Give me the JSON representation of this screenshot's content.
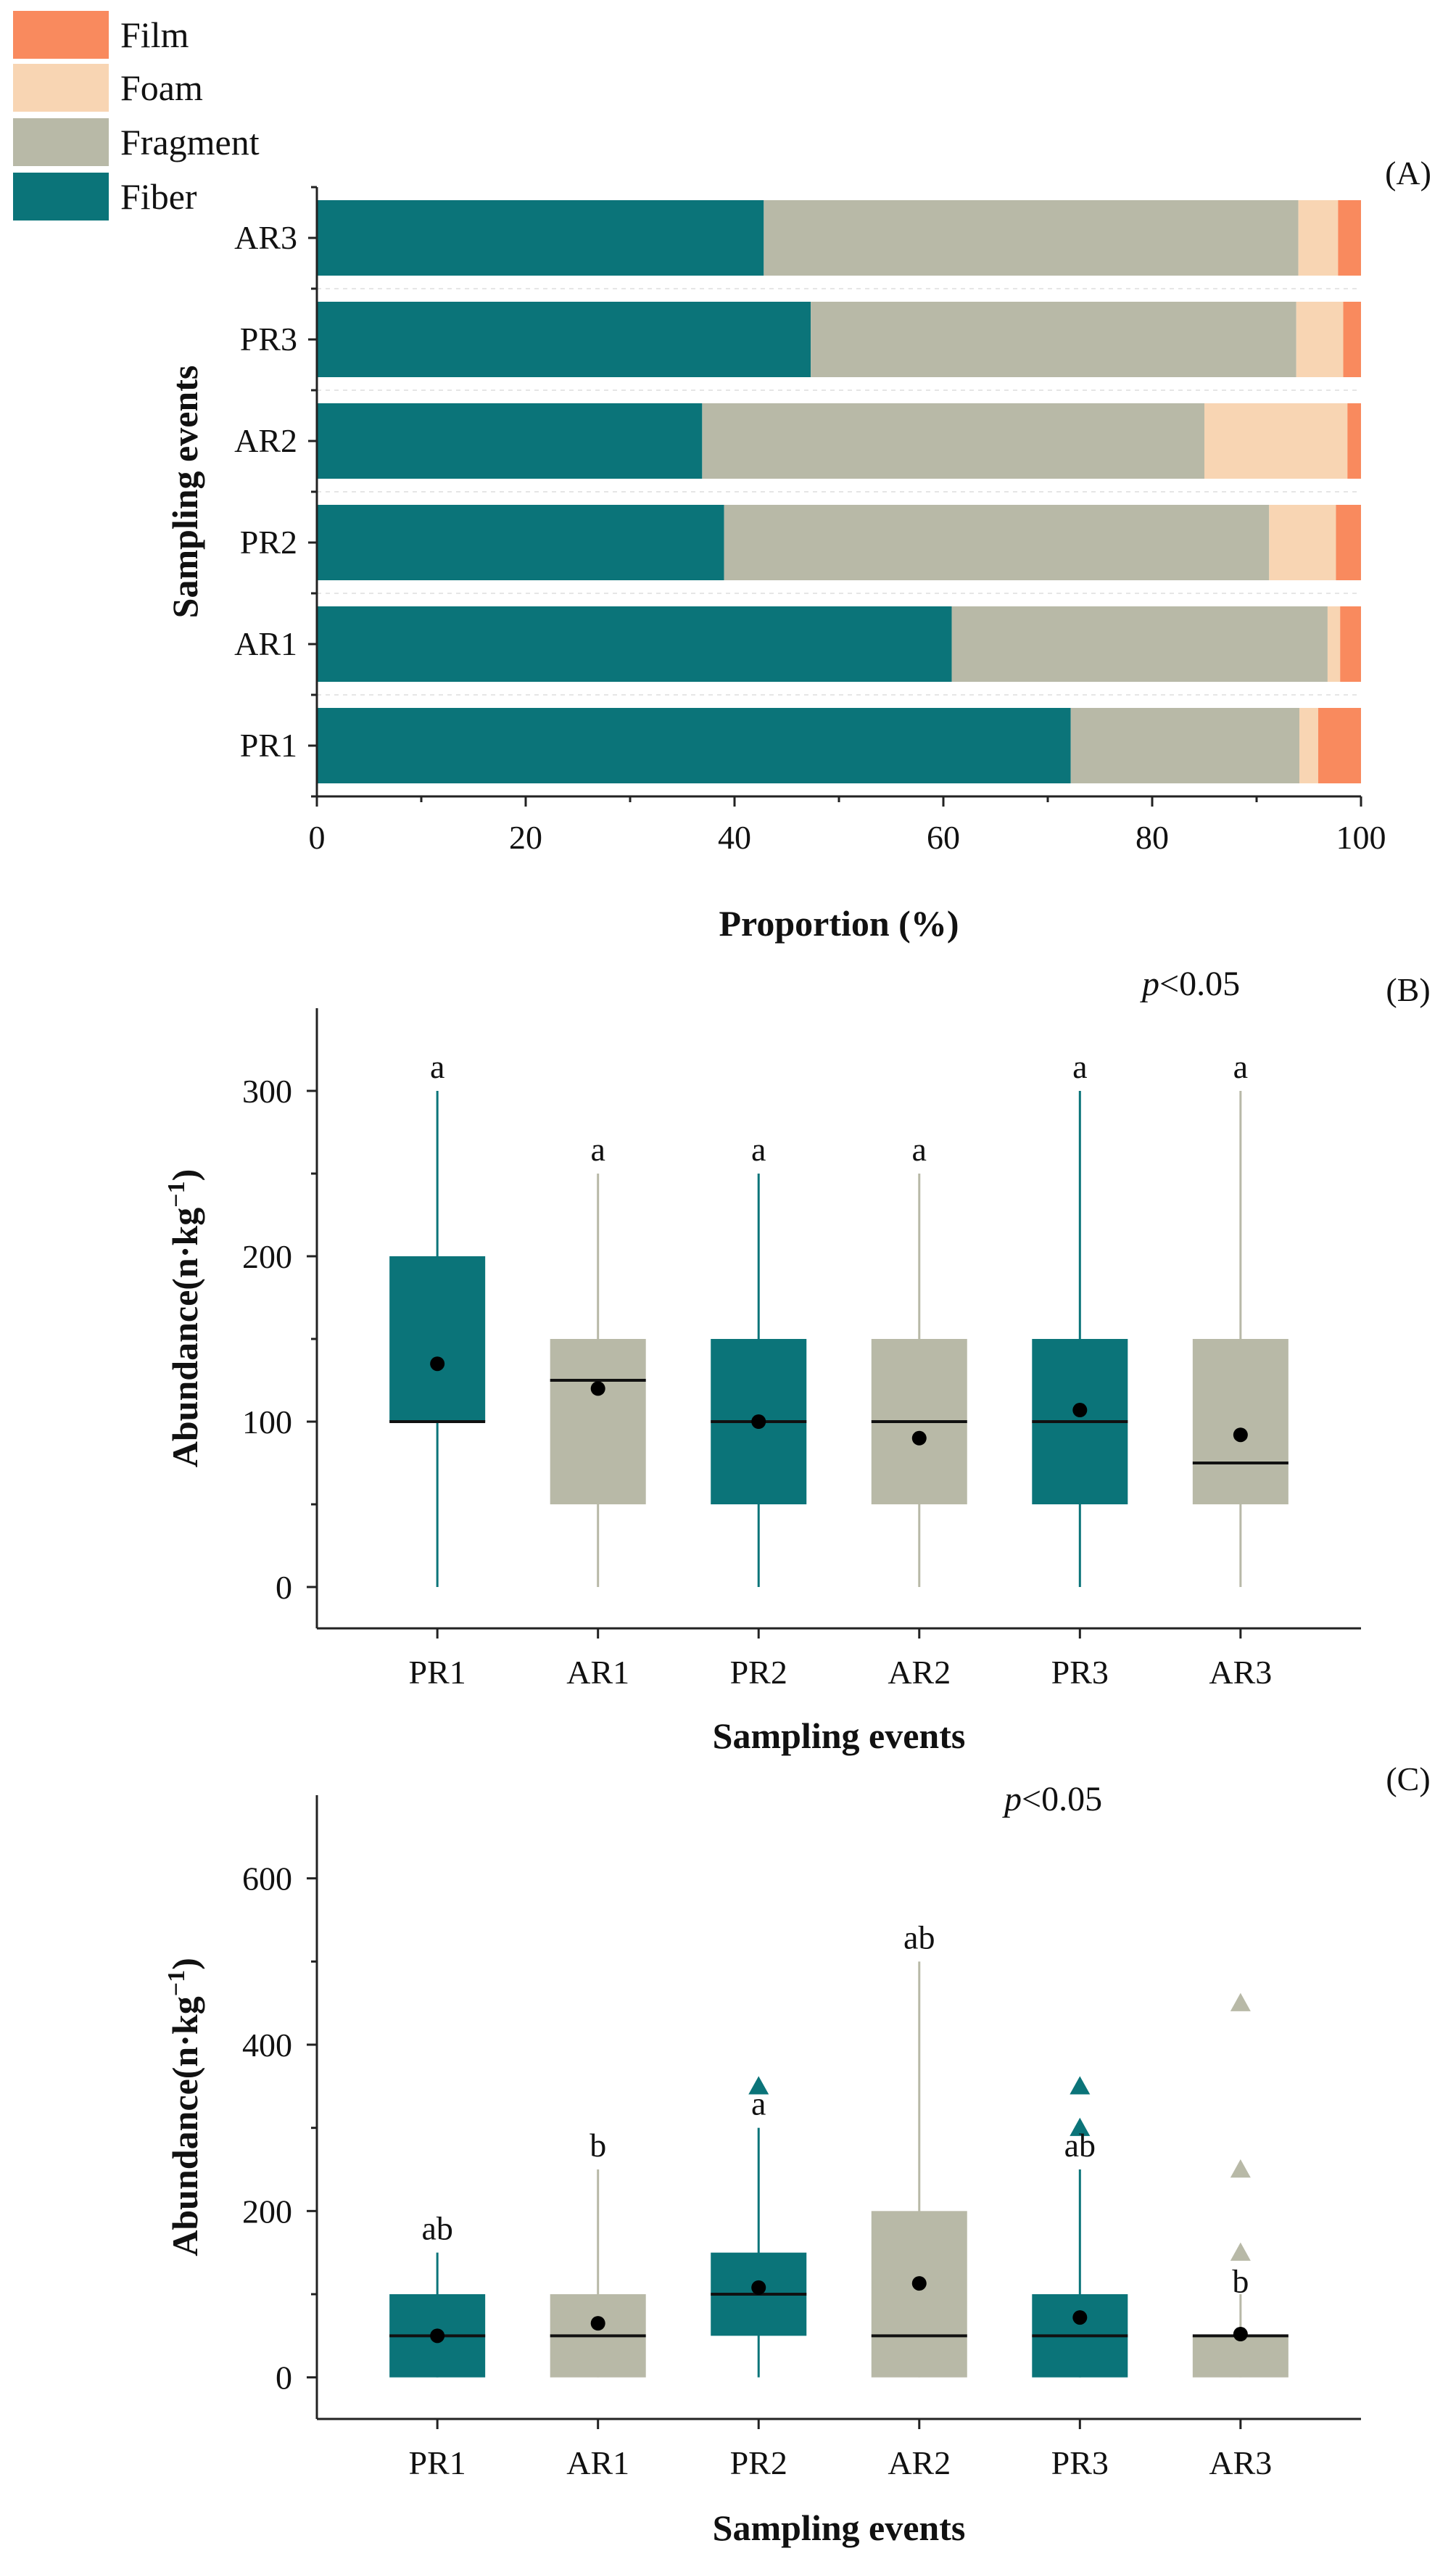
{
  "colors": {
    "film": "#f98a5e",
    "foam": "#f8d5b3",
    "fragment": "#b8b9a7",
    "fiber": "#0b7479",
    "axis": "#222222",
    "mean_dot": "#000000",
    "median": "#111111"
  },
  "chart_data": [
    {
      "panel_label": "(A)",
      "type": "bar",
      "orientation": "horizontal",
      "stacked": true,
      "title": "",
      "xlabel": "Proportion (%)",
      "ylabel": "Sampling events",
      "xlim": [
        0,
        100
      ],
      "xticks": [
        "0",
        "20",
        "40",
        "60",
        "80",
        "100"
      ],
      "categories": [
        "PR1",
        "AR1",
        "PR2",
        "AR2",
        "PR3",
        "AR3"
      ],
      "legend": {
        "placement": "top-left",
        "entries": [
          "Film",
          "Foam",
          "Fragment",
          "Fiber"
        ]
      },
      "series": [
        {
          "name": "Fiber",
          "values": [
            72.2,
            60.8,
            39.0,
            36.9,
            47.3,
            42.8
          ]
        },
        {
          "name": "Fragment",
          "values": [
            21.9,
            36.0,
            52.2,
            48.1,
            46.5,
            51.2
          ]
        },
        {
          "name": "Foam",
          "values": [
            1.8,
            1.2,
            6.4,
            13.7,
            4.5,
            3.8
          ]
        },
        {
          "name": "Film",
          "values": [
            4.1,
            2.0,
            2.4,
            1.3,
            1.7,
            2.2
          ]
        }
      ]
    },
    {
      "panel_label": "(B)",
      "type": "box",
      "xlabel": "Sampling events",
      "ylabel": "Abundance(n·kg⁻¹)",
      "ylabel_parts": {
        "base": "Abundance(n·kg",
        "sup": "−1",
        "close": ")"
      },
      "ylim": [
        -25,
        350
      ],
      "yticks": [
        "0",
        "100",
        "200",
        "300"
      ],
      "annotation": {
        "p_italic": "p",
        "rest": "<0.05"
      },
      "categories": [
        "PR1",
        "AR1",
        "PR2",
        "AR2",
        "PR3",
        "AR3"
      ],
      "boxes": [
        {
          "group": "PR",
          "min": 0,
          "q1": 100,
          "median": 100,
          "q3": 200,
          "max": 300,
          "mean": 135,
          "letter": "a",
          "outliers": []
        },
        {
          "group": "AR",
          "min": 0,
          "q1": 50,
          "median": 125,
          "q3": 150,
          "max": 250,
          "mean": 120,
          "letter": "a",
          "outliers": []
        },
        {
          "group": "PR",
          "min": 0,
          "q1": 50,
          "median": 100,
          "q3": 150,
          "max": 250,
          "mean": 100,
          "letter": "a",
          "outliers": []
        },
        {
          "group": "AR",
          "min": 0,
          "q1": 50,
          "median": 100,
          "q3": 150,
          "max": 250,
          "mean": 90,
          "letter": "a",
          "outliers": []
        },
        {
          "group": "PR",
          "min": 0,
          "q1": 50,
          "median": 100,
          "q3": 150,
          "max": 300,
          "mean": 107,
          "letter": "a",
          "outliers": []
        },
        {
          "group": "AR",
          "min": 0,
          "q1": 50,
          "median": 75,
          "q3": 150,
          "max": 300,
          "mean": 92,
          "letter": "a",
          "outliers": []
        }
      ]
    },
    {
      "panel_label": "(C)",
      "type": "box",
      "xlabel": "Sampling events",
      "ylabel": "Abundance(n·kg⁻¹)",
      "ylabel_parts": {
        "base": "Abundance(n·kg",
        "sup": "−1",
        "close": ")"
      },
      "ylim": [
        -50,
        700
      ],
      "yticks": [
        "0",
        "200",
        "400",
        "600"
      ],
      "annotation": {
        "p_italic": "p",
        "rest": "<0.05"
      },
      "categories": [
        "PR1",
        "AR1",
        "PR2",
        "AR2",
        "PR3",
        "AR3"
      ],
      "boxes": [
        {
          "group": "PR",
          "min": 0,
          "q1": 0,
          "median": 50,
          "q3": 100,
          "max": 150,
          "mean": 50,
          "letter": "ab",
          "outliers": []
        },
        {
          "group": "AR",
          "min": 0,
          "q1": 0,
          "median": 50,
          "q3": 100,
          "max": 250,
          "mean": 65,
          "letter": "b",
          "outliers": []
        },
        {
          "group": "PR",
          "min": 0,
          "q1": 50,
          "median": 100,
          "q3": 150,
          "max": 300,
          "mean": 108,
          "letter": "a",
          "outliers": [
            350
          ]
        },
        {
          "group": "AR",
          "min": 0,
          "q1": 0,
          "median": 50,
          "q3": 200,
          "max": 500,
          "mean": 113,
          "letter": "ab",
          "outliers": []
        },
        {
          "group": "PR",
          "min": 0,
          "q1": 0,
          "median": 50,
          "q3": 100,
          "max": 250,
          "mean": 72,
          "letter": "ab",
          "outliers": [
            300,
            350
          ]
        },
        {
          "group": "AR",
          "min": 0,
          "q1": 0,
          "median": 50,
          "q3": 50,
          "max": 100,
          "mean": 52,
          "letter": "b",
          "outliers": [
            150,
            250,
            450
          ]
        }
      ]
    }
  ]
}
